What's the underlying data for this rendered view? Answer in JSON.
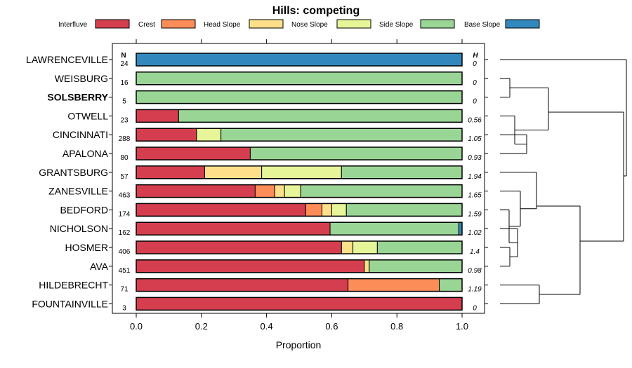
{
  "chart_data": {
    "type": "bar",
    "orientation": "horizontal",
    "stacked": true,
    "title": "Hills: competing",
    "xlabel": "Proportion",
    "ylabel": "",
    "xlim": [
      0,
      1
    ],
    "xticks": [
      "0.0",
      "0.2",
      "0.4",
      "0.6",
      "0.8",
      "1.0"
    ],
    "n_header": "N",
    "h_header": "H",
    "legend": [
      {
        "name": "Interfluve",
        "color": "#d53e4f"
      },
      {
        "name": "Crest",
        "color": "#fc8d59"
      },
      {
        "name": "Head Slope",
        "color": "#fee08b"
      },
      {
        "name": "Nose Slope",
        "color": "#e6f598"
      },
      {
        "name": "Side Slope",
        "color": "#99d594"
      },
      {
        "name": "Base Slope",
        "color": "#3288bd"
      }
    ],
    "series_names": [
      "Interfluve",
      "Crest",
      "Head Slope",
      "Nose Slope",
      "Side Slope",
      "Base Slope"
    ],
    "rows": [
      {
        "name": "LAWRENCEVILLE",
        "bold": false,
        "n": "24",
        "h": "0",
        "values": [
          0,
          0,
          0,
          0,
          0,
          1.0
        ]
      },
      {
        "name": "WEISBURG",
        "bold": false,
        "n": "16",
        "h": "0",
        "values": [
          0,
          0,
          0,
          0,
          1.0,
          0
        ]
      },
      {
        "name": "SOLSBERRY",
        "bold": true,
        "n": "5",
        "h": "0",
        "values": [
          0,
          0,
          0,
          0,
          1.0,
          0
        ]
      },
      {
        "name": "OTWELL",
        "bold": false,
        "n": "23",
        "h": "0.56",
        "values": [
          0.13,
          0,
          0,
          0,
          0.87,
          0
        ]
      },
      {
        "name": "CINCINNATI",
        "bold": false,
        "n": "288",
        "h": "1.05",
        "values": [
          0.185,
          0,
          0,
          0.075,
          0.74,
          0
        ]
      },
      {
        "name": "APALONA",
        "bold": false,
        "n": "80",
        "h": "0.93",
        "values": [
          0.35,
          0,
          0,
          0,
          0.65,
          0
        ]
      },
      {
        "name": "GRANTSBURG",
        "bold": false,
        "n": "57",
        "h": "1.94",
        "values": [
          0.21,
          0,
          0.175,
          0.245,
          0.37,
          0
        ]
      },
      {
        "name": "ZANESVILLE",
        "bold": false,
        "n": "463",
        "h": "1.65",
        "values": [
          0.365,
          0.06,
          0.03,
          0.05,
          0.495,
          0
        ]
      },
      {
        "name": "BEDFORD",
        "bold": false,
        "n": "174",
        "h": "1.59",
        "values": [
          0.52,
          0.05,
          0.03,
          0.045,
          0.355,
          0
        ]
      },
      {
        "name": "NICHOLSON",
        "bold": false,
        "n": "162",
        "h": "1.02",
        "values": [
          0.595,
          0,
          0,
          0,
          0.395,
          0.01
        ]
      },
      {
        "name": "HOSMER",
        "bold": false,
        "n": "406",
        "h": "1.4",
        "values": [
          0.63,
          0,
          0.035,
          0.075,
          0.26,
          0
        ]
      },
      {
        "name": "AVA",
        "bold": false,
        "n": "451",
        "h": "0.98",
        "values": [
          0.7,
          0,
          0.015,
          0,
          0.285,
          0
        ]
      },
      {
        "name": "HILDEBRECHT",
        "bold": false,
        "n": "71",
        "h": "1.19",
        "values": [
          0.65,
          0.28,
          0,
          0,
          0.07,
          0
        ]
      },
      {
        "name": "FOUNTAINVILLE",
        "bold": false,
        "n": "3",
        "h": "0",
        "values": [
          1.0,
          0,
          0,
          0,
          0,
          0
        ]
      }
    ],
    "dendrogram": {
      "description": "hierarchical clustering of series",
      "merges": [
        [
          1,
          2,
          0.93
        ],
        [
          3,
          4,
          0.87
        ],
        [
          5,
          6,
          0.87
        ],
        [
          -2,
          -3,
          0.83
        ],
        [
          -1,
          -4,
          0.72
        ],
        [
          10,
          11,
          0.9
        ],
        [
          -6,
          9,
          0.87
        ],
        [
          -7,
          12,
          0.86
        ],
        [
          8,
          -8,
          0.82
        ],
        [
          7,
          -9,
          0.66
        ],
        [
          13,
          14,
          0.66
        ],
        [
          -10,
          -11,
          0.42
        ],
        [
          -5,
          -12,
          0.5
        ],
        [
          0,
          -13,
          0
        ]
      ]
    }
  }
}
